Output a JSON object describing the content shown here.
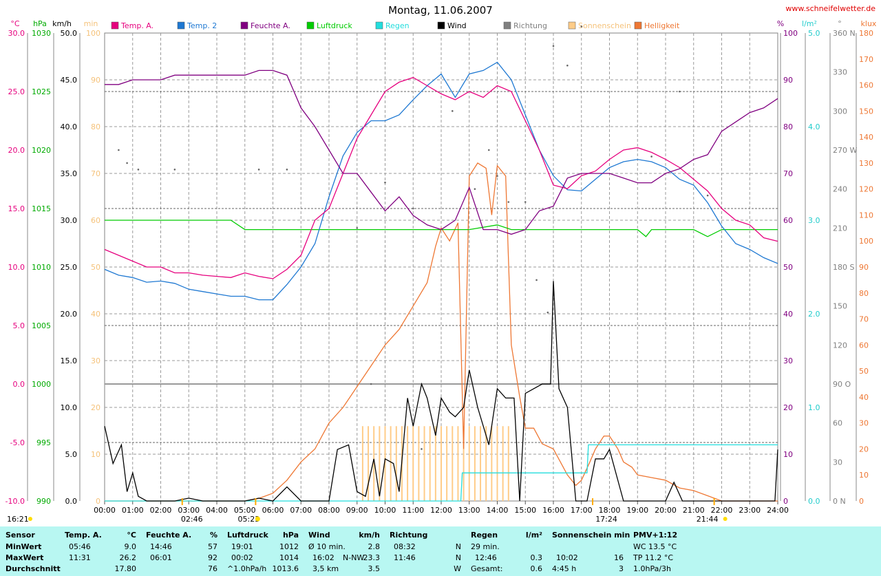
{
  "title": "Montag, 11.06.2007",
  "site": "www.schneifelwetter.de",
  "colors": {
    "temp_a": "#e6007e",
    "temp_2": "#1e78d2",
    "feuchte": "#800080",
    "luftdruck": "#00cc00",
    "regen": "#22dddd",
    "wind": "#000000",
    "richtung": "#808080",
    "sonnenschein": "#ffcc88",
    "helligkeit": "#ee7733",
    "panel_bg": "#b8f7f2"
  },
  "legend": [
    {
      "label": "Temp. A.",
      "color": "#e6007e"
    },
    {
      "label": "Temp. 2",
      "color": "#1e78d2"
    },
    {
      "label": "Feuchte A.",
      "color": "#800080"
    },
    {
      "label": "Luftdruck",
      "color": "#00cc00"
    },
    {
      "label": "Regen",
      "color": "#22dddd"
    },
    {
      "label": "Wind",
      "color": "#000000"
    },
    {
      "label": "Richtung",
      "color": "#808080"
    },
    {
      "label": "Sonnenschein",
      "color": "#ffcc88"
    },
    {
      "label": "Helligkeit",
      "color": "#ee7733"
    }
  ],
  "axes": {
    "temp": {
      "unit": "°C",
      "ticks": [
        "30.0",
        "25.0",
        "20.0",
        "15.0",
        "10.0",
        "5.0",
        "0.0",
        "-5.0",
        "-10.0"
      ],
      "color": "#e6007e"
    },
    "pressure": {
      "unit": "hPa",
      "ticks": [
        "1030",
        "1025",
        "1020",
        "1015",
        "1010",
        "1005",
        "1000",
        "995",
        "990"
      ],
      "color": "#00aa00"
    },
    "wind": {
      "unit": "km/h",
      "ticks": [
        "50.0",
        "45.0",
        "40.0",
        "35.0",
        "30.0",
        "25.0",
        "20.0",
        "15.0",
        "10.0",
        "5.0",
        "0.0"
      ],
      "color": "#000000"
    },
    "sunmin": {
      "unit": "min",
      "ticks": [
        "100",
        "90",
        "80",
        "70",
        "60",
        "50",
        "40",
        "30",
        "20",
        "10",
        "0"
      ],
      "color": "#f5c27a"
    },
    "humidity": {
      "unit": "%",
      "ticks": [
        "100",
        "90",
        "80",
        "70",
        "60",
        "50",
        "40",
        "30",
        "20",
        "10",
        "0"
      ],
      "color": "#800080"
    },
    "rain": {
      "unit": "l/m²",
      "ticks": [
        "5.0",
        "4.0",
        "3.0",
        "2.0",
        "1.0",
        "0.0"
      ],
      "color": "#22cccc"
    },
    "direction": {
      "unit": "°",
      "ticks": [
        "360 N",
        "330",
        "300",
        "270 W",
        "240",
        "210",
        "180 S",
        "150",
        "120",
        "90 O",
        "60",
        "30",
        "0 N"
      ],
      "color": "#808080"
    },
    "klux": {
      "unit": "klux",
      "ticks": [
        "180",
        "170",
        "160",
        "150",
        "140",
        "130",
        "120",
        "110",
        "100",
        "90",
        "80",
        "70",
        "60",
        "50",
        "40",
        "30",
        "20",
        "10",
        "0"
      ],
      "color": "#ee7733"
    }
  },
  "time_labels": [
    "00:00",
    "01:00",
    "02:00",
    "03:00",
    "04:00",
    "05:00",
    "06:00",
    "07:00",
    "08:00",
    "09:00",
    "10:00",
    "11:00",
    "12:00",
    "13:00",
    "14:00",
    "15:00",
    "16:00",
    "17:00",
    "18:00",
    "19:00",
    "20:00",
    "21:00",
    "22:00",
    "23:00",
    "24:00"
  ],
  "markers": {
    "sunrise": "05:23",
    "sunset": "21:44",
    "moonset": "02:46",
    "moonrise": "16:21",
    "marker_1724": "17:24"
  },
  "chart_data": {
    "type": "line",
    "x_unit": "hours",
    "series": [
      {
        "name": "Temp. A.",
        "unit": "°C",
        "x": [
          0,
          0.5,
          1,
          1.5,
          2,
          2.5,
          3,
          3.5,
          4,
          4.5,
          5,
          5.5,
          6,
          6.5,
          7,
          7.5,
          8,
          8.5,
          9,
          9.5,
          10,
          10.5,
          11,
          11.5,
          12,
          12.5,
          13,
          13.5,
          14,
          14.5,
          15,
          15.5,
          16,
          16.5,
          17,
          17.5,
          18,
          18.5,
          19,
          19.5,
          20,
          20.5,
          21,
          21.5,
          22,
          22.5,
          23,
          23.5,
          24
        ],
        "y": [
          11.5,
          11,
          10.5,
          10,
          10,
          9.5,
          9.5,
          9.3,
          9.2,
          9.1,
          9.5,
          9.2,
          9,
          9.8,
          11,
          14,
          15,
          18,
          21,
          23,
          25,
          25.8,
          26.2,
          25.5,
          24.8,
          24.3,
          25,
          24.5,
          25.5,
          25,
          22.5,
          20,
          17,
          16.7,
          17.8,
          18.2,
          19.2,
          20,
          20.2,
          19.8,
          19.2,
          18.5,
          17.5,
          16.5,
          15,
          14,
          13.6,
          12.5,
          12.2
        ]
      },
      {
        "name": "Temp. 2",
        "unit": "°C",
        "x": [
          0,
          0.5,
          1,
          1.5,
          2,
          2.5,
          3,
          3.5,
          4,
          4.5,
          5,
          5.5,
          6,
          6.5,
          7,
          7.5,
          8,
          8.5,
          9,
          9.5,
          10,
          10.5,
          11,
          11.5,
          12,
          12.5,
          13,
          13.5,
          14,
          14.5,
          15,
          15.5,
          16,
          16.5,
          17,
          17.5,
          18,
          18.5,
          19,
          19.5,
          20,
          20.5,
          21,
          21.5,
          22,
          22.5,
          23,
          23.5,
          24
        ],
        "y": [
          9.8,
          9.3,
          9.1,
          8.7,
          8.8,
          8.6,
          8.1,
          7.9,
          7.7,
          7.5,
          7.5,
          7.2,
          7.2,
          8.5,
          10,
          12,
          16,
          19.5,
          21.5,
          22.5,
          22.5,
          23,
          24.3,
          25.5,
          26.5,
          24.5,
          26.5,
          26.8,
          27.5,
          26,
          23,
          20,
          17.8,
          16.6,
          16.5,
          17.5,
          18.5,
          19,
          19.2,
          19,
          18.5,
          17.5,
          17,
          15.5,
          13.5,
          12,
          11.5,
          10.8,
          10.3
        ]
      },
      {
        "name": "Feuchte A.",
        "unit": "%",
        "x": [
          0,
          0.5,
          1,
          1.5,
          2,
          2.5,
          3,
          3.5,
          4,
          4.5,
          5,
          5.5,
          6,
          6.5,
          7,
          7.5,
          8,
          8.5,
          9,
          9.5,
          10,
          10.5,
          11,
          11.5,
          12,
          12.5,
          13,
          13.5,
          14,
          14.5,
          15,
          15.5,
          16,
          16.5,
          17,
          17.5,
          18,
          18.5,
          19,
          19.5,
          20,
          20.5,
          21,
          21.5,
          22,
          22.5,
          23,
          23.5,
          24
        ],
        "y": [
          89,
          89,
          90,
          90,
          90,
          91,
          91,
          91,
          91,
          91,
          91,
          92,
          92,
          91,
          84,
          80,
          75,
          70,
          70,
          66,
          62,
          65,
          61,
          59,
          58,
          60,
          67,
          58,
          58,
          57,
          58,
          62,
          63,
          69,
          70,
          70,
          70,
          69,
          68,
          68,
          70,
          71,
          73,
          74,
          79,
          81,
          83,
          84,
          86
        ]
      },
      {
        "name": "Luftdruck",
        "unit": "hPa",
        "x": [
          0,
          1,
          2,
          3,
          4,
          4.5,
          5,
          6,
          7,
          8,
          9,
          10,
          11,
          12,
          13,
          14,
          14.5,
          15,
          16,
          17,
          18,
          19,
          19.3,
          19.5,
          20,
          21,
          21.5,
          22,
          23,
          24
        ],
        "y": [
          1014,
          1014,
          1014,
          1014,
          1014,
          1014,
          1013.2,
          1013.2,
          1013.2,
          1013.2,
          1013.2,
          1013.2,
          1013.2,
          1013.2,
          1013.2,
          1013.6,
          1013.2,
          1013.2,
          1013.2,
          1013.2,
          1013.2,
          1013.2,
          1012.6,
          1013.2,
          1013.2,
          1013.2,
          1012.6,
          1013.2,
          1013.2,
          1013.2
        ]
      },
      {
        "name": "Regen",
        "unit": "l/m²",
        "x": [
          0,
          12.7,
          12.75,
          14,
          15,
          16,
          16.9,
          17.2,
          17.25,
          18,
          19,
          20,
          21,
          22,
          23,
          24
        ],
        "y": [
          0,
          0,
          0.3,
          0.3,
          0.3,
          0.3,
          0.3,
          0.3,
          0.6,
          0.6,
          0.6,
          0.6,
          0.6,
          0.6,
          0.6,
          0.6
        ]
      },
      {
        "name": "Wind",
        "unit": "km/h",
        "x": [
          0,
          0.3,
          0.6,
          0.8,
          1,
          1.2,
          1.5,
          2,
          2.5,
          3,
          3.5,
          4,
          4.5,
          5,
          5.5,
          6,
          6.5,
          7,
          7.5,
          8,
          8.3,
          8.7,
          9,
          9.3,
          9.6,
          9.8,
          10,
          10.3,
          10.5,
          10.8,
          11,
          11.3,
          11.5,
          11.8,
          12,
          12.3,
          12.5,
          12.8,
          13,
          13.3,
          13.7,
          14,
          14.3,
          14.6,
          14.8,
          15,
          15.3,
          15.6,
          15.9,
          16,
          16.2,
          16.5,
          16.8,
          17,
          17.2,
          17.5,
          17.8,
          18,
          18.5,
          19,
          19.5,
          20,
          20.3,
          20.6,
          21,
          21.5,
          22,
          22.5,
          23,
          23.5,
          23.9,
          24
        ],
        "y": [
          8,
          4,
          6,
          1,
          3,
          0.5,
          0,
          0,
          0,
          0.3,
          0,
          0,
          0,
          0,
          0.3,
          0,
          1.5,
          0,
          0,
          0,
          5.5,
          6,
          1,
          0.5,
          4.5,
          0.5,
          4.5,
          4,
          1,
          11,
          8,
          12.5,
          11,
          7,
          11,
          9.5,
          9,
          10,
          14,
          10,
          6,
          12,
          11,
          11,
          0,
          11.5,
          12,
          12.5,
          12.5,
          23.5,
          12,
          10,
          0,
          0,
          0,
          4.5,
          4.5,
          5.5,
          0,
          0,
          0,
          0,
          2,
          0,
          0,
          0,
          0,
          0,
          0,
          0,
          0,
          5.5
        ]
      },
      {
        "name": "Helligkeit",
        "unit": "klux",
        "x": [
          0,
          5,
          5.5,
          6,
          6.5,
          7,
          7.5,
          8,
          8.5,
          9,
          9.5,
          10,
          10.5,
          11,
          11.5,
          11.8,
          12,
          12.3,
          12.6,
          12.8,
          13,
          13.3,
          13.6,
          13.8,
          14,
          14.3,
          14.5,
          14.8,
          15,
          15.3,
          15.6,
          16,
          16.5,
          16.8,
          17,
          17.3,
          17.5,
          17.8,
          18,
          18.3,
          18.5,
          18.8,
          19,
          19.5,
          20,
          20.5,
          21,
          21.5,
          22,
          22.5,
          23,
          23.5,
          24
        ],
        "y": [
          0,
          0,
          1,
          3,
          8,
          15,
          20,
          30,
          36,
          44,
          52,
          60,
          66,
          75,
          84,
          98,
          105,
          100,
          107,
          20,
          125,
          130,
          128,
          110,
          129,
          125,
          60,
          40,
          28,
          28,
          22,
          20,
          10,
          6,
          8,
          15,
          20,
          25,
          25,
          20,
          15,
          13,
          10,
          9,
          8,
          5,
          4,
          2,
          0,
          0,
          0,
          0,
          0
        ]
      }
    ],
    "sunshine_bars_x": [
      9.2,
      9.4,
      9.6,
      9.8,
      10,
      10.2,
      10.4,
      10.6,
      10.8,
      11,
      11.2,
      11.4,
      11.6,
      11.8,
      12,
      12.2,
      12.4,
      12.6,
      12.8,
      13,
      13.2,
      13.4,
      13.6,
      13.8,
      14,
      14.2,
      14.4
    ],
    "sunshine_bar_minutes": 16,
    "direction_points": {
      "x": [
        0.5,
        0.8,
        1.2,
        2.5,
        5.5,
        6.5,
        9,
        9.5,
        10,
        11,
        11.3,
        12.4,
        13.2,
        13.7,
        14,
        14.4,
        15,
        15.4,
        15.8,
        16,
        16.5,
        17,
        19.5,
        20.5,
        21.5
      ],
      "y": [
        270,
        260,
        255,
        255,
        255,
        255,
        210,
        90,
        245,
        225,
        40,
        300,
        240,
        270,
        250,
        230,
        230,
        170,
        145,
        350,
        335,
        365,
        265,
        315,
        235
      ]
    },
    "stats": {
      "headers": [
        "Sensor",
        "Temp. A.",
        "°C",
        "Feuchte A.",
        "%",
        "Luftdruck",
        "hPa",
        "Wind",
        "km/h",
        "Richtung",
        "Regen",
        "l/m²",
        "Sonnenschein min",
        "PMV+1:12"
      ],
      "minwert": {
        "label": "MinWert",
        "temp_time": "05:46",
        "temp_val": "9.0",
        "hum_time": "14:46",
        "hum_val": "57",
        "press_time": "19:01",
        "press_val": "1012",
        "wind_label": "Ø 10 min.",
        "wind_val": "2.8",
        "dir_time": "08:32",
        "dir_val": "N",
        "rain_text": "29 min.",
        "sun_text": "",
        "pmv": "WC 13.5 °C"
      },
      "maxwert": {
        "label": "MaxWert",
        "temp_time": "11:31",
        "temp_val": "26.2",
        "hum_time": "06:01",
        "hum_val": "92",
        "press_time": "00:02",
        "press_val": "1014",
        "wind_time": "16:02",
        "wind_dir": "N-NW",
        "wind_val": "23.3",
        "dir_time": "11:46",
        "dir_val": "N",
        "rain_time": "12:46",
        "rain_val": "0.3",
        "sun_time": "10:02",
        "sun_val": "16",
        "pmv": "TP 11.2 °C"
      },
      "durchschnitt": {
        "label": "Durchschnitt",
        "temp_val": "17.80",
        "hum_val": "76",
        "press_label": "^1.0hPa/h",
        "press_val": "1013.6",
        "wind_label": "3,5 km",
        "wind_val": "3.5",
        "dir_val": "W",
        "rain_label": "Gesamt:",
        "rain_val": "0.6",
        "sun_label": "4:45 h",
        "sun_val": "3",
        "pmv": "1.0hPa/3h"
      }
    }
  }
}
